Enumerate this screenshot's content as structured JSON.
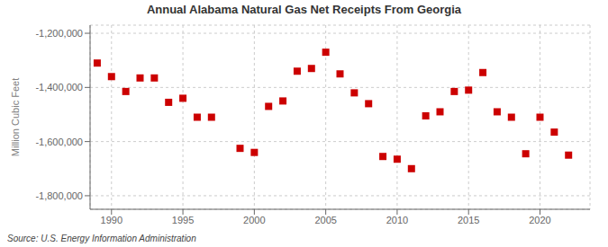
{
  "chart_data": {
    "type": "scatter",
    "title": "Annual Alabama Natural Gas Net Receipts From Georgia",
    "y_label": "Million Cubic Feet",
    "annotations": [
      "Source: U.S. Energy Information Administration"
    ],
    "x": [
      1989,
      1990,
      1991,
      1992,
      1993,
      1994,
      1995,
      1996,
      1997,
      1999,
      2000,
      2001,
      2002,
      2003,
      2004,
      2005,
      2006,
      2007,
      2008,
      2009,
      2010,
      2011,
      2012,
      2013,
      2014,
      2015,
      2016,
      2017,
      2018,
      2019,
      2020,
      2021,
      2022
    ],
    "values": [
      -1310000,
      -1360000,
      -1415000,
      -1365000,
      -1365000,
      -1455000,
      -1440000,
      -1510000,
      -1510000,
      -1625000,
      -1640000,
      -1470000,
      -1450000,
      -1340000,
      -1330000,
      -1270000,
      -1350000,
      -1420000,
      -1460000,
      -1655000,
      -1665000,
      -1700000,
      -1505000,
      -1490000,
      -1415000,
      -1410000,
      -1345000,
      -1490000,
      -1510000,
      -1645000,
      -1510000,
      -1565000,
      -1650000
    ],
    "color": "#cc0000",
    "marker": "square",
    "xlim": [
      1988.5,
      2023.5
    ],
    "ylim": [
      -1850000,
      -1170000
    ],
    "xticks": [
      1990,
      1995,
      2000,
      2005,
      2010,
      2015,
      2020
    ],
    "yticks": [
      {
        "value": -1800000,
        "label": "-1,800,000"
      },
      {
        "value": -1600000,
        "label": "-1,600,000"
      },
      {
        "value": -1400000,
        "label": "-1,400,000"
      },
      {
        "value": -1200000,
        "label": "-1,200,000"
      }
    ],
    "grid": true
  }
}
